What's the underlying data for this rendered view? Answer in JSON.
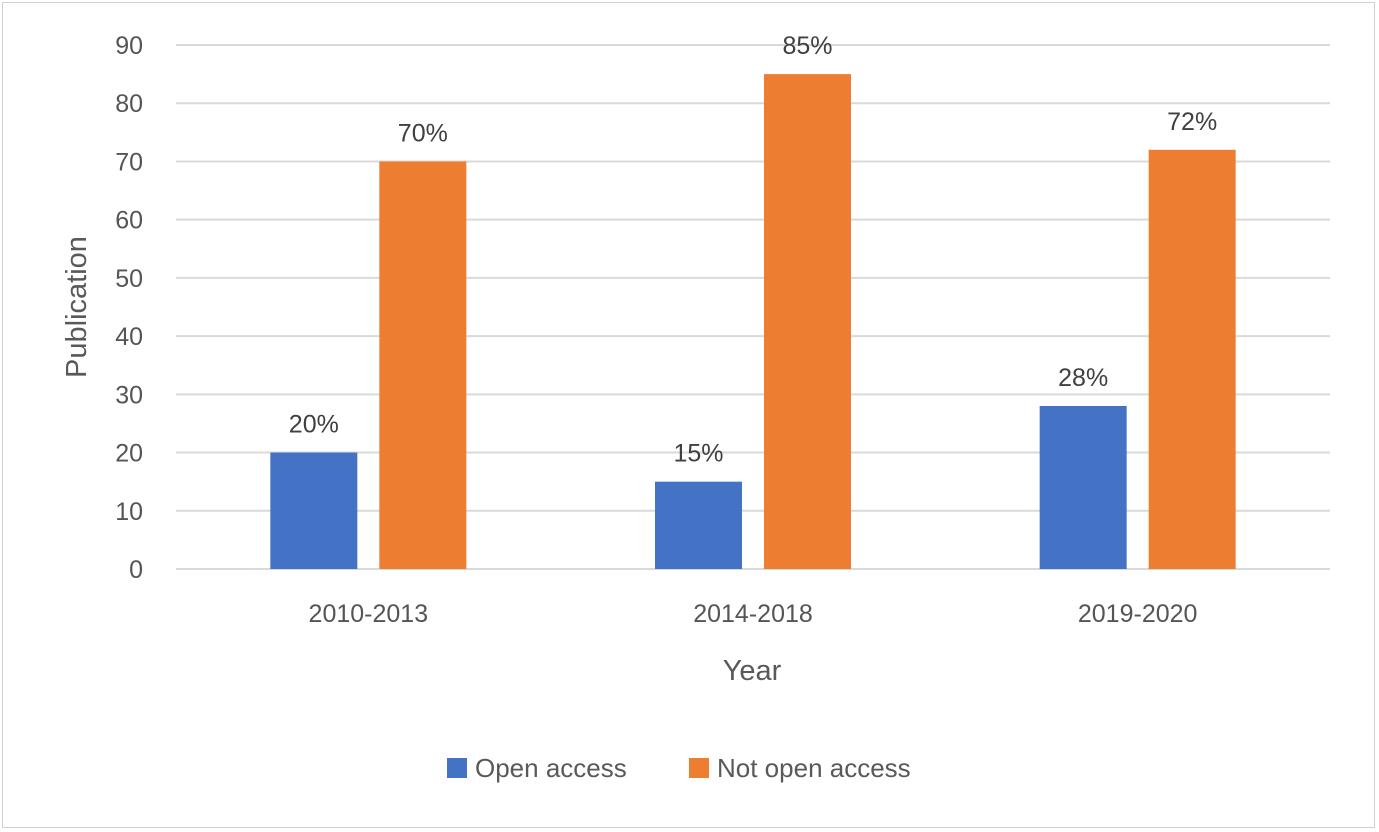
{
  "chart_data": {
    "type": "bar",
    "title": "",
    "xlabel": "Year",
    "ylabel": "Publication",
    "categories": [
      "2010-2013",
      "2014-2018",
      "2019-2020"
    ],
    "series": [
      {
        "name": "Open access",
        "values": [
          20,
          15,
          28
        ],
        "labels": [
          "20%",
          "15%",
          "28%"
        ],
        "color": "#4472C4"
      },
      {
        "name": "Not open access",
        "values": [
          70,
          85,
          72
        ],
        "labels": [
          "70%",
          "85%",
          "72%"
        ],
        "color": "#ED7D31"
      }
    ],
    "ylim": [
      0,
      90
    ],
    "yticks": [
      0,
      10,
      20,
      30,
      40,
      50,
      60,
      70,
      80,
      90
    ],
    "grid": true,
    "gridColor": "#d9d9d9",
    "legend": "bottom"
  }
}
